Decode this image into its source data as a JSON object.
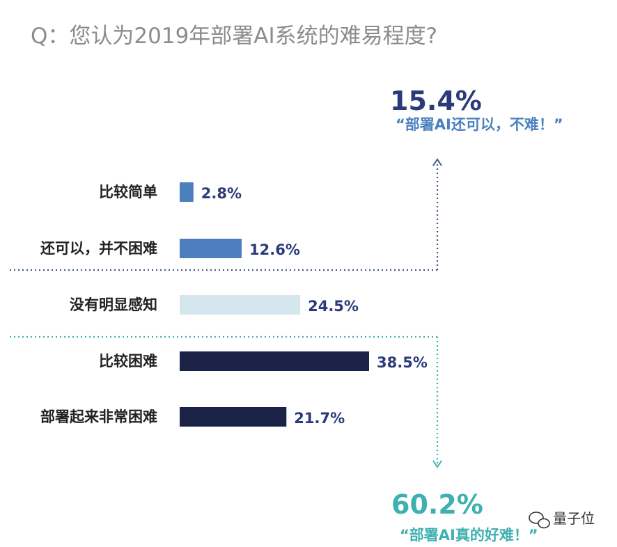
{
  "chart_data": {
    "type": "bar",
    "orientation": "horizontal",
    "title": "Q：您认为2019年部署AI系统的难易程度?",
    "categories": [
      "比较简单",
      "还可以，并不困难",
      "没有明显感知",
      "比较困难",
      "部署起来非常困难"
    ],
    "values": [
      2.8,
      12.6,
      24.5,
      38.5,
      21.7
    ],
    "value_labels": [
      "2.8%",
      "12.6%",
      "24.5%",
      "38.5%",
      "21.7%"
    ],
    "bar_colors": [
      "#4d7fbe",
      "#4d7fbe",
      "#d6e6ee",
      "#1a2346",
      "#1a2346"
    ],
    "xlim": [
      0,
      38.5
    ],
    "grid": false,
    "annotations": {
      "easy": {
        "percent": "15.4%",
        "quote": "“部署AI还可以，不难！”",
        "color": "#2b3a7a"
      },
      "hard": {
        "percent": "60.2%",
        "quote": "“部署AI真的好难！”",
        "color": "#3fb0b0"
      }
    }
  },
  "watermark": {
    "text": "量子位",
    "icon": "wechat-icon"
  }
}
